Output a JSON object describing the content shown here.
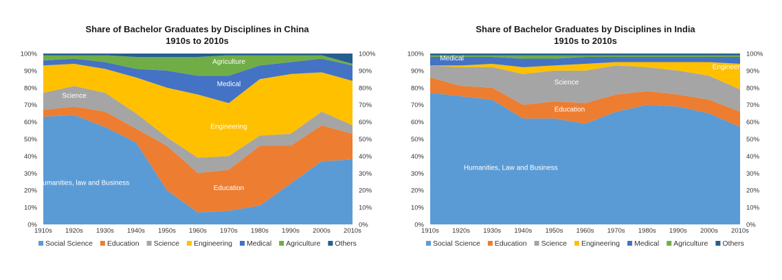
{
  "colors": {
    "social_science": "#5b9bd5",
    "education": "#ed7d31",
    "science": "#a5a5a5",
    "engineering": "#ffc000",
    "medical": "#4472c4",
    "agriculture": "#70ad47",
    "others": "#255e91"
  },
  "chart_data": [
    {
      "type": "area",
      "title": "Share of Bachelor Graduates by Disciplines in China",
      "subtitle": "1910s to 2010s",
      "x": [
        "1910s",
        "1920s",
        "1930s",
        "1940s",
        "1950s",
        "1960s",
        "1970s",
        "1980s",
        "1990s",
        "2000s",
        "2010s"
      ],
      "y_ticks": [
        "0%",
        "10%",
        "20%",
        "30%",
        "40%",
        "50%",
        "60%",
        "70%",
        "80%",
        "90%",
        "100%"
      ],
      "ylim": [
        0,
        100
      ],
      "stacked": true,
      "legend_position": "bottom",
      "series": [
        {
          "name": "Social Science",
          "key": "social_science",
          "values": [
            63,
            64,
            57,
            48,
            20,
            7,
            8,
            11,
            24,
            37,
            38
          ]
        },
        {
          "name": "Education",
          "key": "education",
          "values": [
            4,
            5,
            9,
            8,
            26,
            23,
            24,
            35,
            22,
            21,
            15
          ]
        },
        {
          "name": "Science",
          "key": "science",
          "values": [
            10,
            12,
            11,
            9,
            5,
            9,
            8,
            6,
            7,
            8,
            5
          ]
        },
        {
          "name": "Engineering",
          "key": "engineering",
          "values": [
            16,
            13,
            14,
            21,
            29,
            37,
            31,
            33,
            35,
            23,
            26
          ]
        },
        {
          "name": "Medical",
          "key": "medical",
          "values": [
            3,
            3,
            4,
            5,
            10,
            11,
            16,
            8,
            7,
            8,
            9
          ]
        },
        {
          "name": "Agriculture",
          "key": "agriculture",
          "values": [
            3,
            2,
            4,
            7,
            8,
            11,
            12,
            6,
            4,
            2,
            1
          ]
        },
        {
          "name": "Others",
          "key": "others",
          "values": [
            1,
            1,
            1,
            2,
            2,
            2,
            1,
            1,
            1,
            1,
            6
          ]
        }
      ],
      "annotations": [
        {
          "text": "Agriculture",
          "x": 6,
          "y": 94
        },
        {
          "text": "Medical",
          "x": 6,
          "y": 81
        },
        {
          "text": "Science",
          "x": 1,
          "y": 74
        },
        {
          "text": "Engineering",
          "x": 6,
          "y": 56
        },
        {
          "text": "Education",
          "x": 6,
          "y": 20
        },
        {
          "text": "Humanities, law and Business",
          "x": 1.3,
          "y": 23
        }
      ]
    },
    {
      "type": "area",
      "title": "Share of Bachelor Graduates by Disciplines in India",
      "subtitle": "1910s to 2010s",
      "x": [
        "1910s",
        "1920s",
        "1930s",
        "1940s",
        "1950s",
        "1960s",
        "1970s",
        "1980s",
        "1990s",
        "2000s",
        "2010s"
      ],
      "y_ticks": [
        "0%",
        "10%",
        "20%",
        "30%",
        "40%",
        "50%",
        "60%",
        "70%",
        "80%",
        "90%",
        "100%"
      ],
      "ylim": [
        0,
        100
      ],
      "stacked": true,
      "legend_position": "bottom",
      "series": [
        {
          "name": "Social Science",
          "key": "social_science",
          "values": [
            77,
            75,
            73,
            62,
            62,
            59,
            66,
            70,
            69,
            65,
            57
          ]
        },
        {
          "name": "Education",
          "key": "education",
          "values": [
            9,
            6,
            7,
            8,
            10,
            12,
            10,
            8,
            7,
            8,
            9
          ]
        },
        {
          "name": "Science",
          "key": "science",
          "values": [
            7,
            11,
            12,
            18,
            18,
            19,
            17,
            14,
            14,
            14,
            13
          ]
        },
        {
          "name": "Engineering",
          "key": "engineering",
          "values": [
            0,
            1,
            2,
            4,
            3,
            4,
            2,
            3,
            5,
            8,
            15
          ]
        },
        {
          "name": "Medical",
          "key": "medical",
          "values": [
            5,
            5,
            4,
            5,
            4,
            4,
            3,
            3,
            3,
            3,
            4
          ]
        },
        {
          "name": "Agriculture",
          "key": "agriculture",
          "values": [
            1,
            1,
            1,
            2,
            2,
            1,
            1,
            1,
            1,
            1,
            1
          ]
        },
        {
          "name": "Others",
          "key": "others",
          "values": [
            1,
            1,
            1,
            1,
            1,
            1,
            1,
            1,
            1,
            1,
            1
          ]
        }
      ],
      "annotations": [
        {
          "text": "Medical",
          "x": 0.7,
          "y": 96
        },
        {
          "text": "Engineering",
          "x": 9.7,
          "y": 91
        },
        {
          "text": "Science",
          "x": 4.4,
          "y": 82
        },
        {
          "text": "Education",
          "x": 4.5,
          "y": 66
        },
        {
          "text": "Humanities, Law and Business",
          "x": 2.6,
          "y": 32
        }
      ]
    }
  ]
}
